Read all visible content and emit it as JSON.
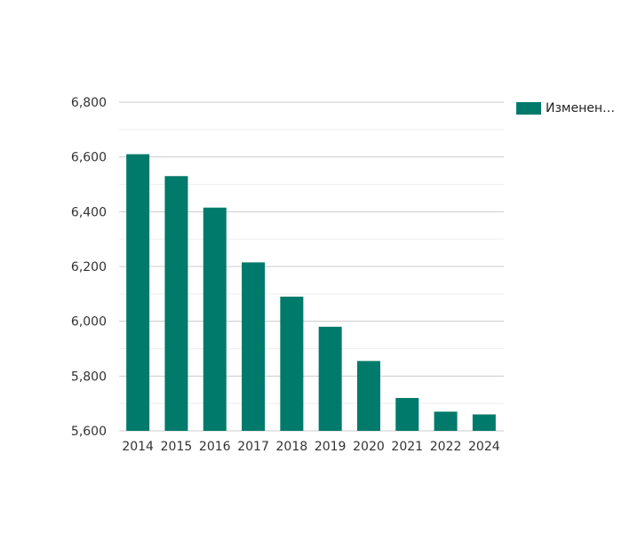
{
  "chart_data": {
    "type": "bar",
    "categories": [
      "2014",
      "2015",
      "2016",
      "2017",
      "2018",
      "2019",
      "2020",
      "2021",
      "2022",
      "2024"
    ],
    "series": [
      {
        "name": "Изменен…",
        "values": [
          6610,
          6530,
          6415,
          6215,
          6090,
          5980,
          5855,
          5720,
          5670,
          5660
        ]
      }
    ],
    "ylim": [
      5600,
      6800
    ],
    "y_ticks": [
      "5,600",
      "5,800",
      "6,000",
      "6,200",
      "6,400",
      "6,600",
      "6,800"
    ],
    "grid": true,
    "legend_position": "top-right",
    "colors": {
      "bar": "#007a6a",
      "grid_major": "#cccccc",
      "grid_minor": "#eeeeee",
      "axis_text": "#333333"
    }
  }
}
